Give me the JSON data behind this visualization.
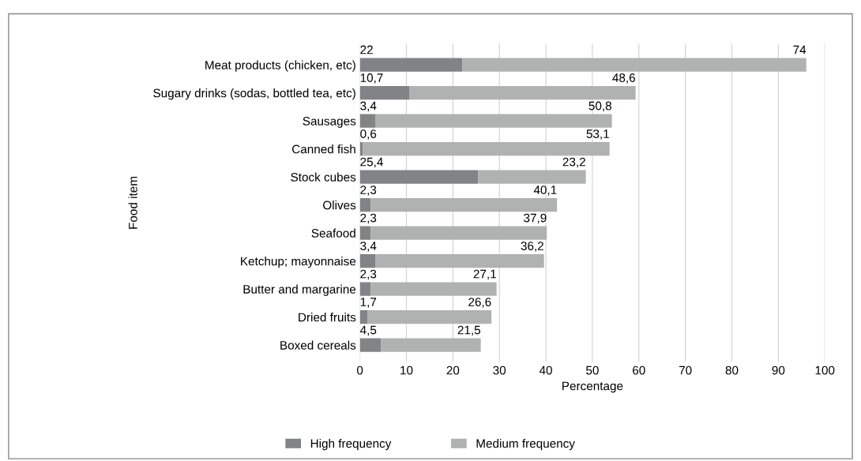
{
  "chart_data": {
    "type": "bar",
    "orientation": "horizontal",
    "stacked": true,
    "xlabel": "Percentage",
    "ylabel": "Food item",
    "categories": [
      "Meat products (chicken, etc)",
      "Sugary drinks (sodas, bottled tea, etc)",
      "Sausages",
      "Canned fish",
      "Stock cubes",
      "Olives",
      "Seafood",
      "Ketchup; mayonnaise",
      "Butter and margarine",
      "Dried fruits",
      "Boxed cereals"
    ],
    "series": [
      {
        "name": "High frequency",
        "color": "#828387",
        "values": [
          22,
          10.7,
          3.4,
          0.6,
          25.4,
          2.3,
          2.3,
          3.4,
          2.3,
          1.7,
          4.5
        ],
        "value_labels": [
          "22",
          "10,7",
          "3,4",
          "0,6",
          "25,4",
          "2,3",
          "2,3",
          "3,4",
          "2,3",
          "1,7",
          "4,5"
        ]
      },
      {
        "name": "Medium frequency",
        "color": "#b0b2b2",
        "values": [
          74,
          48.6,
          50.8,
          53.1,
          23.2,
          40.1,
          37.9,
          36.2,
          27.1,
          26.6,
          21.5
        ],
        "value_labels": [
          "74",
          "48,6",
          "50,8",
          "53,1",
          "23,2",
          "40,1",
          "37,9",
          "36,2",
          "27,1",
          "26,6",
          "21,5"
        ]
      }
    ],
    "xlim": [
      0,
      100
    ],
    "xticks": [
      0,
      10,
      20,
      30,
      40,
      50,
      60,
      70,
      80,
      90,
      100
    ],
    "grid": "x",
    "legend": "bottom"
  }
}
